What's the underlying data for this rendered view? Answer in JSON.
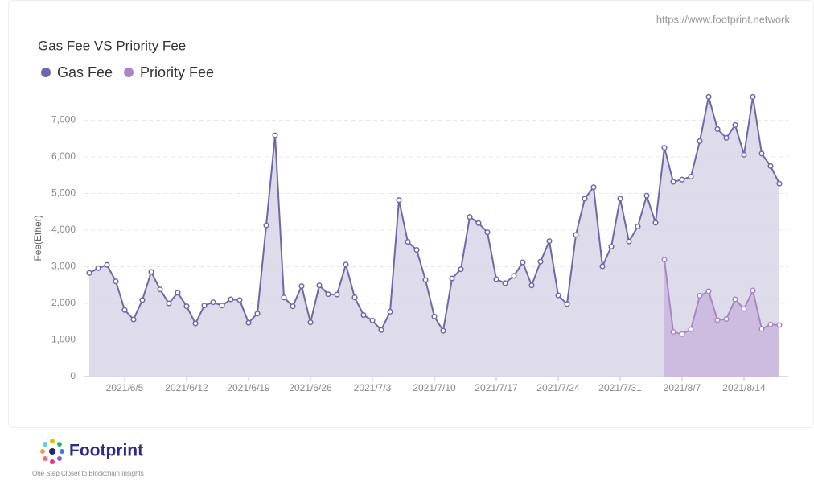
{
  "source_url": "https://www.footprint.network",
  "brand": {
    "name": "Footprint",
    "tagline": "One Step Closer to Blockchain Insights"
  },
  "chart_data": {
    "type": "area",
    "title": "Gas Fee VS Priority Fee",
    "y_label": "Fee(Ether)",
    "categories": [
      null,
      null,
      null,
      null,
      "2021/6/5",
      null,
      null,
      null,
      null,
      null,
      null,
      "2021/6/12",
      null,
      null,
      null,
      null,
      null,
      null,
      "2021/6/19",
      null,
      null,
      null,
      null,
      null,
      null,
      "2021/6/26",
      null,
      null,
      null,
      null,
      null,
      null,
      "2021/7/3",
      null,
      null,
      null,
      null,
      null,
      null,
      "2021/7/10",
      null,
      null,
      null,
      null,
      null,
      null,
      "2021/7/17",
      null,
      null,
      null,
      null,
      null,
      null,
      "2021/7/24",
      null,
      null,
      null,
      null,
      null,
      null,
      "2021/7/31",
      null,
      null,
      null,
      null,
      null,
      null,
      "2021/8/7",
      null,
      null,
      null,
      null,
      null,
      null,
      "2021/8/14",
      null,
      null,
      null,
      null
    ],
    "series": [
      {
        "name": "Gas Fee",
        "color": "#6d69a6",
        "fill": "#d8d6e8",
        "values": [
          2830,
          2960,
          3050,
          2600,
          1820,
          1560,
          2090,
          2860,
          2380,
          2000,
          2290,
          1920,
          1450,
          1940,
          2030,
          1940,
          2110,
          2090,
          1470,
          1720,
          4130,
          6590,
          2160,
          1920,
          2470,
          1480,
          2490,
          2250,
          2240,
          3060,
          2160,
          1680,
          1530,
          1270,
          1770,
          4820,
          3680,
          3460,
          2640,
          1640,
          1250,
          2680,
          2930,
          4360,
          4190,
          3940,
          2660,
          2550,
          2750,
          3120,
          2490,
          3140,
          3700,
          2220,
          1980,
          3870,
          4860,
          5170,
          3010,
          3550,
          4860,
          3690,
          4100,
          4940,
          4200,
          6250,
          5320,
          5380,
          5460,
          6430,
          7640,
          6760,
          6520,
          6870,
          6060,
          7640,
          6090,
          5750,
          5270
        ]
      },
      {
        "name": "Priority Fee",
        "color": "#a886c6",
        "fill": "#c9b6de",
        "values": [
          null,
          null,
          null,
          null,
          null,
          null,
          null,
          null,
          null,
          null,
          null,
          null,
          null,
          null,
          null,
          null,
          null,
          null,
          null,
          null,
          null,
          null,
          null,
          null,
          null,
          null,
          null,
          null,
          null,
          null,
          null,
          null,
          null,
          null,
          null,
          null,
          null,
          null,
          null,
          null,
          null,
          null,
          null,
          null,
          null,
          null,
          null,
          null,
          null,
          null,
          null,
          null,
          null,
          null,
          null,
          null,
          null,
          null,
          null,
          null,
          null,
          null,
          null,
          null,
          null,
          3190,
          1220,
          1160,
          1290,
          2210,
          2330,
          1540,
          1570,
          2110,
          1850,
          2350,
          1300,
          1420,
          1410
        ]
      }
    ],
    "ylim": [
      0,
      8000
    ],
    "yticks": [
      0,
      {
        "value": 1000,
        "label": "1,000"
      },
      {
        "value": 2000,
        "label": "2,000"
      },
      {
        "value": 3000,
        "label": "3,000"
      },
      {
        "value": 4000,
        "label": "4,000"
      },
      {
        "value": 5000,
        "label": "5,000"
      },
      {
        "value": 6000,
        "label": "6,000"
      },
      {
        "value": 7000,
        "label": "7,000"
      }
    ],
    "grid": true
  }
}
